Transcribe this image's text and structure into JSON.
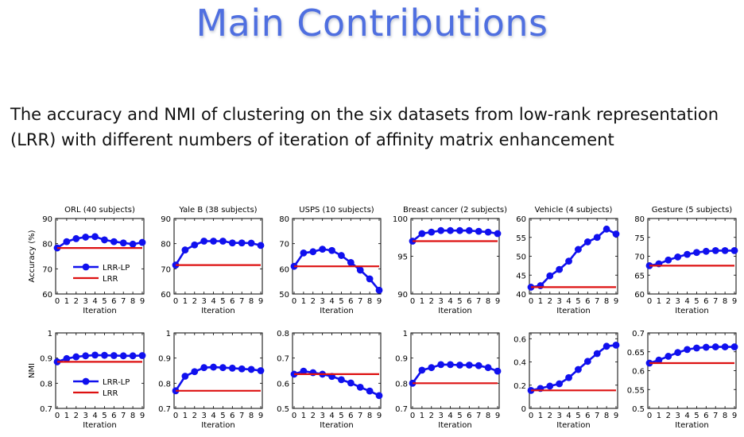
{
  "slide": {
    "title": "Main Contributions",
    "description": "The accuracy and NMI of clustering on the six datasets from low-rank representation (LRR) with different numbers of iteration of affinity matrix enhancement"
  },
  "colors": {
    "title": "#4f6fe0",
    "lrr_lp": "#1010ee",
    "lrr": "#dd1111"
  },
  "chart_data": [
    {
      "type": "line",
      "metric": "accuracy",
      "title": "ORL (40 subjects)",
      "xlabel": "Iteration",
      "ylabel": "Accuracy (%)",
      "x": [
        0,
        1,
        2,
        3,
        4,
        5,
        6,
        7,
        8,
        9
      ],
      "ylim": [
        60,
        90
      ],
      "yticks": [
        "60",
        "70",
        "80",
        "90"
      ],
      "legend": {
        "position": "lower-left",
        "entries": [
          "LRR-LP",
          "LRR"
        ]
      },
      "series": [
        {
          "name": "LRR-LP",
          "values": [
            78.3,
            80.8,
            82.0,
            82.6,
            82.8,
            81.5,
            80.8,
            80.3,
            79.8,
            80.5
          ]
        },
        {
          "name": "LRR",
          "values": [
            78.3,
            78.3,
            78.3,
            78.3,
            78.3,
            78.3,
            78.3,
            78.3,
            78.3,
            78.3
          ]
        }
      ]
    },
    {
      "type": "line",
      "metric": "accuracy",
      "title": "Yale B (38 subjects)",
      "xlabel": "Iteration",
      "ylabel": "",
      "x": [
        0,
        1,
        2,
        3,
        4,
        5,
        6,
        7,
        8,
        9
      ],
      "ylim": [
        60,
        90
      ],
      "yticks": [
        "60",
        "70",
        "80",
        "90"
      ],
      "series": [
        {
          "name": "LRR-LP",
          "values": [
            71.5,
            77.5,
            79.5,
            81.0,
            81.0,
            81.0,
            80.3,
            80.3,
            80.2,
            79.3
          ]
        },
        {
          "name": "LRR",
          "values": [
            71.5,
            71.5,
            71.5,
            71.5,
            71.5,
            71.5,
            71.5,
            71.5,
            71.5,
            71.5
          ]
        }
      ]
    },
    {
      "type": "line",
      "metric": "accuracy",
      "title": "USPS (10 subjects)",
      "xlabel": "Iteration",
      "ylabel": "",
      "x": [
        0,
        1,
        2,
        3,
        4,
        5,
        6,
        7,
        8,
        9
      ],
      "ylim": [
        50,
        80
      ],
      "yticks": [
        "50",
        "60",
        "70",
        "80"
      ],
      "series": [
        {
          "name": "LRR-LP",
          "values": [
            61.0,
            66.3,
            66.8,
            67.8,
            67.3,
            65.3,
            62.5,
            59.5,
            56.0,
            51.5
          ]
        },
        {
          "name": "LRR",
          "values": [
            61.0,
            61.0,
            61.0,
            61.0,
            61.0,
            61.0,
            61.0,
            61.0,
            61.0,
            61.0
          ]
        }
      ]
    },
    {
      "type": "line",
      "metric": "accuracy",
      "title": "Breast cancer (2 subjects)",
      "xlabel": "Iteration",
      "ylabel": "",
      "x": [
        0,
        1,
        2,
        3,
        4,
        5,
        6,
        7,
        8,
        9
      ],
      "ylim": [
        90,
        100
      ],
      "yticks": [
        "90",
        "95",
        "100"
      ],
      "series": [
        {
          "name": "LRR-LP",
          "values": [
            97.0,
            98.0,
            98.2,
            98.4,
            98.4,
            98.4,
            98.4,
            98.3,
            98.2,
            98.0
          ]
        },
        {
          "name": "LRR",
          "values": [
            97.0,
            97.0,
            97.0,
            97.0,
            97.0,
            97.0,
            97.0,
            97.0,
            97.0,
            97.0
          ]
        }
      ]
    },
    {
      "type": "line",
      "metric": "accuracy",
      "title": "Vehicle (4 subjects)",
      "xlabel": "Iteration",
      "ylabel": "",
      "x": [
        0,
        1,
        2,
        3,
        4,
        5,
        6,
        7,
        8,
        9
      ],
      "ylim": [
        40,
        60
      ],
      "yticks": [
        "40",
        "45",
        "50",
        "55",
        "60"
      ],
      "series": [
        {
          "name": "LRR-LP",
          "values": [
            41.8,
            42.2,
            44.8,
            46.5,
            48.7,
            51.8,
            53.8,
            55.0,
            57.2,
            55.9
          ]
        },
        {
          "name": "LRR",
          "values": [
            41.8,
            41.8,
            41.8,
            41.8,
            41.8,
            41.8,
            41.8,
            41.8,
            41.8,
            41.8
          ]
        }
      ]
    },
    {
      "type": "line",
      "metric": "accuracy",
      "title": "Gesture (5 subjects)",
      "xlabel": "Iteration",
      "ylabel": "",
      "x": [
        0,
        1,
        2,
        3,
        4,
        5,
        6,
        7,
        8,
        9
      ],
      "ylim": [
        60,
        80
      ],
      "yticks": [
        "60",
        "65",
        "70",
        "75",
        "80"
      ],
      "series": [
        {
          "name": "LRR-LP",
          "values": [
            67.5,
            68.0,
            69.0,
            69.8,
            70.5,
            71.0,
            71.3,
            71.5,
            71.5,
            71.5
          ]
        },
        {
          "name": "LRR",
          "values": [
            67.5,
            67.5,
            67.5,
            67.5,
            67.5,
            67.5,
            67.5,
            67.5,
            67.5,
            67.5
          ]
        }
      ]
    },
    {
      "type": "line",
      "metric": "nmi",
      "title": "",
      "xlabel": "Iteration",
      "ylabel": "NMI",
      "x": [
        0,
        1,
        2,
        3,
        4,
        5,
        6,
        7,
        8,
        9
      ],
      "ylim": [
        0.7,
        1.0
      ],
      "yticks": [
        "0.7",
        "0.8",
        "0.9",
        "1"
      ],
      "legend": {
        "position": "lower-left",
        "entries": [
          "LRR-LP",
          "LRR"
        ]
      },
      "series": [
        {
          "name": "LRR-LP",
          "values": [
            0.885,
            0.898,
            0.905,
            0.909,
            0.912,
            0.911,
            0.91,
            0.909,
            0.909,
            0.91
          ]
        },
        {
          "name": "LRR",
          "values": [
            0.885,
            0.885,
            0.885,
            0.885,
            0.885,
            0.885,
            0.885,
            0.885,
            0.885,
            0.885
          ]
        }
      ]
    },
    {
      "type": "line",
      "metric": "nmi",
      "title": "",
      "xlabel": "Iteration",
      "ylabel": "",
      "x": [
        0,
        1,
        2,
        3,
        4,
        5,
        6,
        7,
        8,
        9
      ],
      "ylim": [
        0.7,
        1.0
      ],
      "yticks": [
        "0.7",
        "0.8",
        "0.9",
        "1"
      ],
      "series": [
        {
          "name": "LRR-LP",
          "values": [
            0.77,
            0.828,
            0.846,
            0.862,
            0.864,
            0.862,
            0.86,
            0.857,
            0.855,
            0.85
          ]
        },
        {
          "name": "LRR",
          "values": [
            0.77,
            0.77,
            0.77,
            0.77,
            0.77,
            0.77,
            0.77,
            0.77,
            0.77,
            0.77
          ]
        }
      ]
    },
    {
      "type": "line",
      "metric": "nmi",
      "title": "",
      "xlabel": "Iteration",
      "ylabel": "",
      "x": [
        0,
        1,
        2,
        3,
        4,
        5,
        6,
        7,
        8,
        9
      ],
      "ylim": [
        0.5,
        0.8
      ],
      "yticks": [
        "0.5",
        "0.6",
        "0.7",
        "0.8"
      ],
      "series": [
        {
          "name": "LRR-LP",
          "values": [
            0.636,
            0.648,
            0.642,
            0.636,
            0.627,
            0.614,
            0.601,
            0.584,
            0.569,
            0.551
          ]
        },
        {
          "name": "LRR",
          "values": [
            0.636,
            0.636,
            0.636,
            0.636,
            0.636,
            0.636,
            0.636,
            0.636,
            0.636,
            0.636
          ]
        }
      ]
    },
    {
      "type": "line",
      "metric": "nmi",
      "title": "",
      "xlabel": "Iteration",
      "ylabel": "",
      "x": [
        0,
        1,
        2,
        3,
        4,
        5,
        6,
        7,
        8,
        9
      ],
      "ylim": [
        0.7,
        1.0
      ],
      "yticks": [
        "0.7",
        "0.8",
        "0.9",
        "1"
      ],
      "series": [
        {
          "name": "LRR-LP",
          "values": [
            0.8,
            0.852,
            0.862,
            0.874,
            0.874,
            0.872,
            0.872,
            0.87,
            0.862,
            0.848
          ]
        },
        {
          "name": "LRR",
          "values": [
            0.8,
            0.8,
            0.8,
            0.8,
            0.8,
            0.8,
            0.8,
            0.8,
            0.8,
            0.8
          ]
        }
      ]
    },
    {
      "type": "line",
      "metric": "nmi",
      "title": "",
      "xlabel": "Iteration",
      "ylabel": "",
      "x": [
        0,
        1,
        2,
        3,
        4,
        5,
        6,
        7,
        8,
        9
      ],
      "ylim": [
        0,
        0.65
      ],
      "yticks": [
        "0",
        "0.2",
        "0.4",
        "0.6"
      ],
      "ytickvalues": [
        0,
        0.2,
        0.4,
        0.6
      ],
      "series": [
        {
          "name": "LRR-LP",
          "values": [
            0.155,
            0.172,
            0.192,
            0.212,
            0.265,
            0.335,
            0.405,
            0.472,
            0.535,
            0.545
          ]
        },
        {
          "name": "LRR",
          "values": [
            0.155,
            0.155,
            0.155,
            0.155,
            0.155,
            0.155,
            0.155,
            0.155,
            0.155,
            0.155
          ]
        }
      ]
    },
    {
      "type": "line",
      "metric": "nmi",
      "title": "",
      "xlabel": "Iteration",
      "ylabel": "",
      "x": [
        0,
        1,
        2,
        3,
        4,
        5,
        6,
        7,
        8,
        9
      ],
      "ylim": [
        0.5,
        0.7
      ],
      "yticks": [
        "0.5",
        "0.55",
        "0.6",
        "0.65",
        "0.7"
      ],
      "series": [
        {
          "name": "LRR-LP",
          "values": [
            0.62,
            0.628,
            0.638,
            0.648,
            0.656,
            0.66,
            0.662,
            0.663,
            0.663,
            0.663
          ]
        },
        {
          "name": "LRR",
          "values": [
            0.62,
            0.62,
            0.62,
            0.62,
            0.62,
            0.62,
            0.62,
            0.62,
            0.62,
            0.62
          ]
        }
      ]
    }
  ]
}
